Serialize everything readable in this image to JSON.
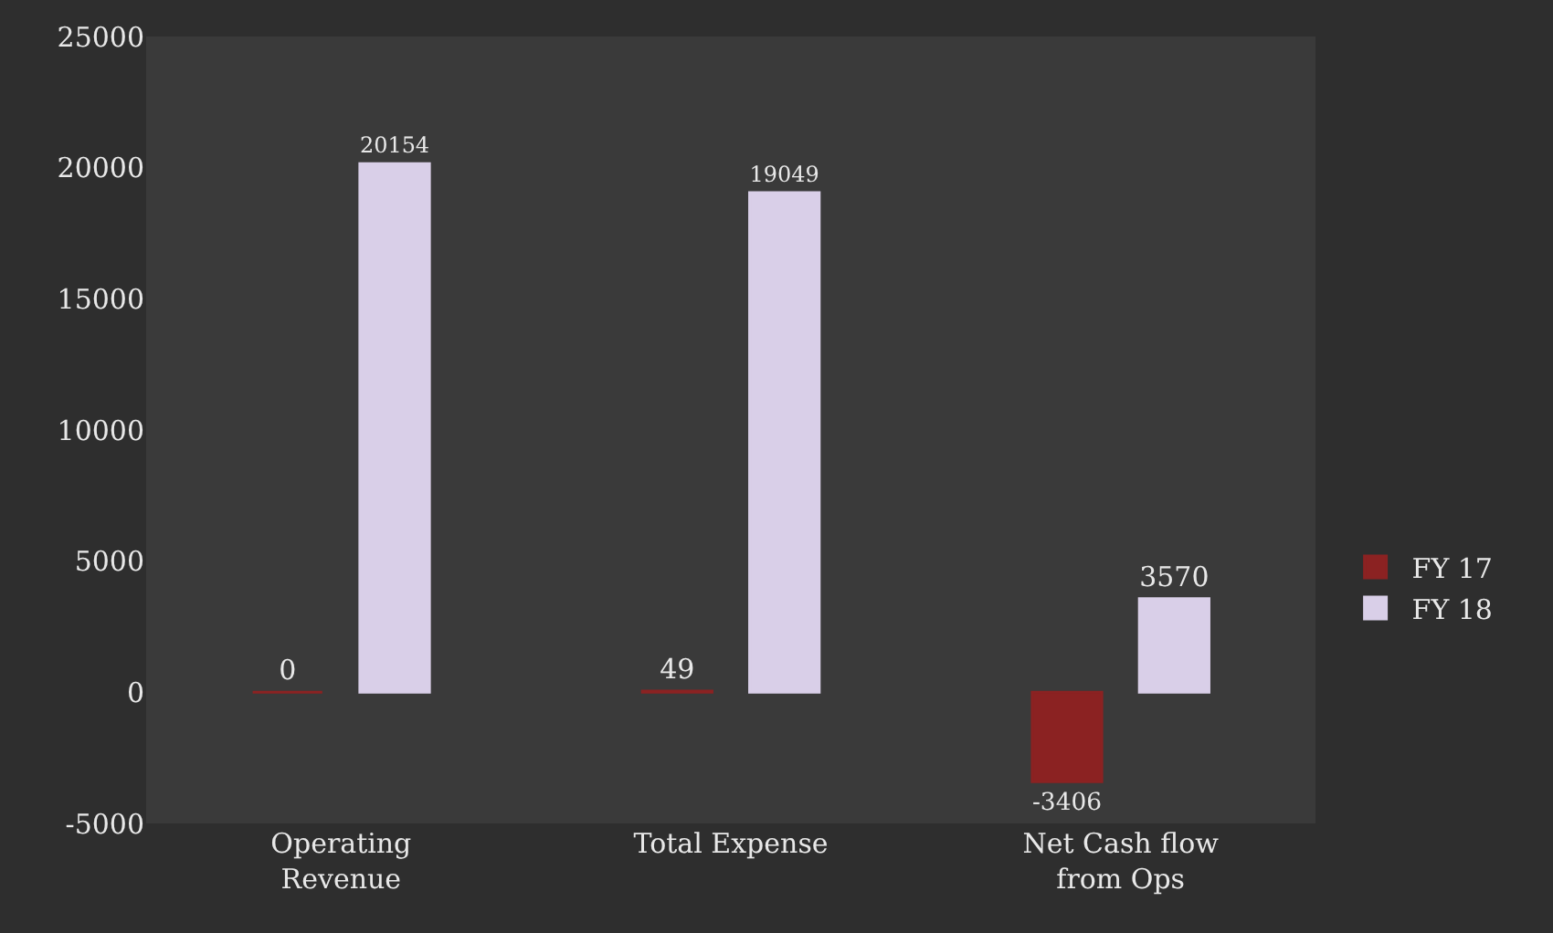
{
  "chart_data": {
    "type": "bar",
    "categories": [
      "Operating Revenue",
      "Total Expense",
      "Net Cash flow from Ops"
    ],
    "series": [
      {
        "name": "FY 17",
        "color": "#8b2222",
        "values": [
          0,
          49,
          -3406
        ]
      },
      {
        "name": "FY 18",
        "color": "#d9cfe8",
        "values": [
          20154,
          19049,
          3570
        ]
      }
    ],
    "ylim": [
      -5000,
      25000
    ],
    "yticks": [
      -5000,
      0,
      5000,
      10000,
      15000,
      20000,
      25000
    ],
    "data_labels": true,
    "grid": false,
    "legend": "right"
  }
}
